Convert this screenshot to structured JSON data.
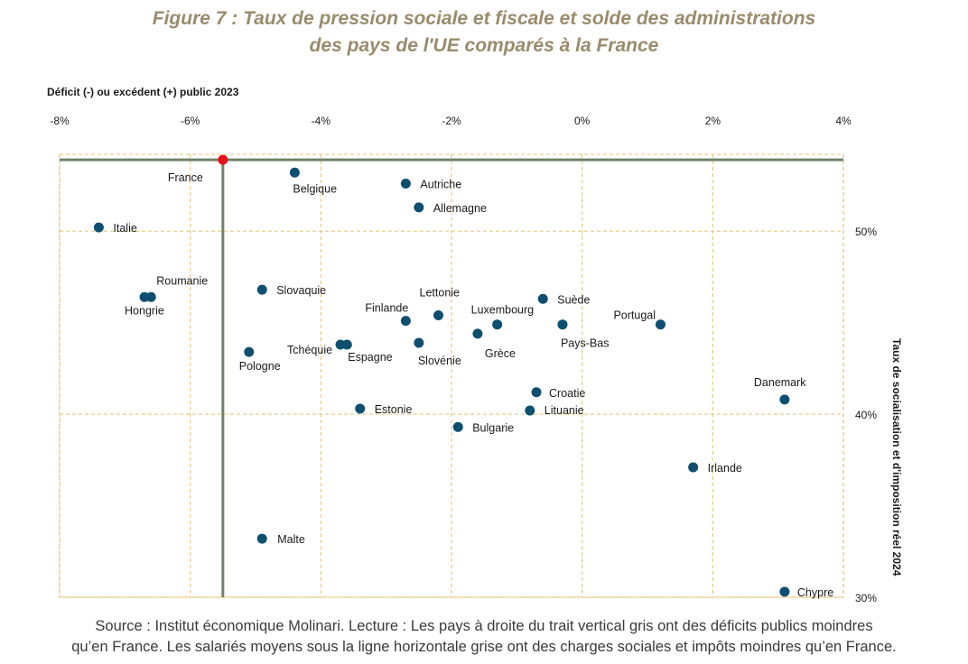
{
  "title_line1": "Figure 7 : Taux de pression sociale et fiscale et solde des administrations",
  "title_line2": "des pays de l'UE comparés à la France",
  "source_line1": "Source : Institut économique Molinari. Lecture : Les pays à droite du trait vertical gris ont des déficits publics moindres",
  "source_line2": "qu’en France. Les salariés moyens sous la ligne horizontale grise ont des charges sociales et impôts moindres qu’en France.",
  "colors": {
    "point": "#0e4f70",
    "highlight": "#e8101a",
    "reference_line": "#6e8266",
    "grid": "#e9cf8f",
    "text": "#1a1a1a"
  },
  "chart_data": {
    "type": "scatter",
    "xlabel": "Déficit (-) ou excédent (+) public 2023",
    "ylabel": "Taux de socialisation et d'imposition réel 2024",
    "xlim": [
      -8,
      4
    ],
    "ylim": [
      30,
      54.2
    ],
    "x_ticks": [
      -8,
      -6,
      -4,
      -2,
      0,
      2,
      4
    ],
    "x_tick_labels": [
      "-8%",
      "-6%",
      "-4%",
      "-2%",
      "0%",
      "2%",
      "4%"
    ],
    "y_ticks": [
      30,
      40,
      50
    ],
    "y_tick_labels": [
      "30%",
      "40%",
      "50%"
    ],
    "grid": true,
    "reference": {
      "x": -5.5,
      "y": 53.9
    },
    "points": [
      {
        "label": "France",
        "x": -5.5,
        "y": 53.9,
        "highlight": true
      },
      {
        "label": "Belgique",
        "x": -4.4,
        "y": 53.2
      },
      {
        "label": "Autriche",
        "x": -2.7,
        "y": 52.6
      },
      {
        "label": "Allemagne",
        "x": -2.5,
        "y": 51.3
      },
      {
        "label": "Italie",
        "x": -7.4,
        "y": 50.2
      },
      {
        "label": "Roumanie",
        "x": -6.6,
        "y": 46.4
      },
      {
        "label": "Hongrie",
        "x": -6.7,
        "y": 46.4
      },
      {
        "label": "Slovaquie",
        "x": -4.9,
        "y": 46.8
      },
      {
        "label": "Suède",
        "x": -0.6,
        "y": 46.3
      },
      {
        "label": "Lettonie",
        "x": -2.2,
        "y": 45.4
      },
      {
        "label": "Finlande",
        "x": -2.7,
        "y": 45.1
      },
      {
        "label": "Luxembourg",
        "x": -1.3,
        "y": 44.9
      },
      {
        "label": "Portugal",
        "x": 1.2,
        "y": 44.9
      },
      {
        "label": "Pays-Bas",
        "x": -0.3,
        "y": 44.9
      },
      {
        "label": "Grèce",
        "x": -1.6,
        "y": 44.4
      },
      {
        "label": "Slovénie",
        "x": -2.5,
        "y": 43.9
      },
      {
        "label": "Tchéquie",
        "x": -3.7,
        "y": 43.8
      },
      {
        "label": "Espagne",
        "x": -3.6,
        "y": 43.8
      },
      {
        "label": "Pologne",
        "x": -5.1,
        "y": 43.4
      },
      {
        "label": "Croatie",
        "x": -0.7,
        "y": 41.2
      },
      {
        "label": "Danemark",
        "x": 3.1,
        "y": 40.8
      },
      {
        "label": "Lituanie",
        "x": -0.8,
        "y": 40.2
      },
      {
        "label": "Estonie",
        "x": -3.4,
        "y": 40.3
      },
      {
        "label": "Bulgarie",
        "x": -1.9,
        "y": 39.3
      },
      {
        "label": "Irlande",
        "x": 1.7,
        "y": 37.1
      },
      {
        "label": "Malte",
        "x": -4.9,
        "y": 33.2
      },
      {
        "label": "Chypre",
        "x": 3.1,
        "y": 30.3
      }
    ]
  }
}
